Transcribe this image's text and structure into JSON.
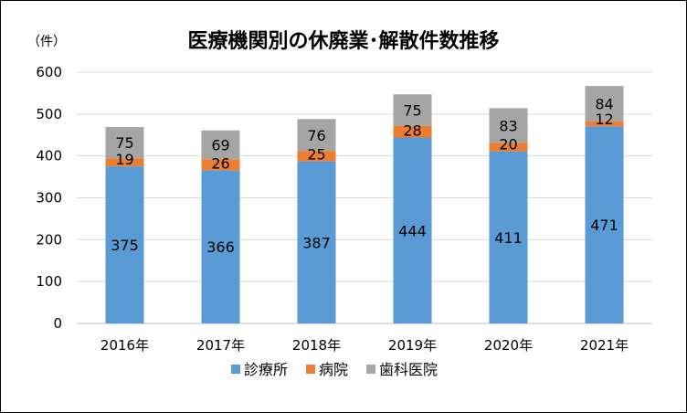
{
  "chart_data": {
    "type": "bar",
    "stacked": true,
    "title": "医療機関別の休廃業･解散件数推移",
    "unit_label": "（件）",
    "categories": [
      "2016年",
      "2017年",
      "2018年",
      "2019年",
      "2020年",
      "2021年"
    ],
    "series": [
      {
        "name": "診療所",
        "color": "#5b9bd5",
        "values": [
          375,
          366,
          387,
          444,
          411,
          471
        ]
      },
      {
        "name": "病院",
        "color": "#ed7d31",
        "values": [
          19,
          26,
          25,
          28,
          20,
          12
        ]
      },
      {
        "name": "歯科医院",
        "color": "#a5a5a5",
        "values": [
          75,
          69,
          76,
          75,
          83,
          84
        ]
      }
    ],
    "ylim": [
      0,
      600
    ],
    "yticks": [
      0,
      100,
      200,
      300,
      400,
      500,
      600
    ],
    "grid": true,
    "legend_position": "bottom"
  }
}
